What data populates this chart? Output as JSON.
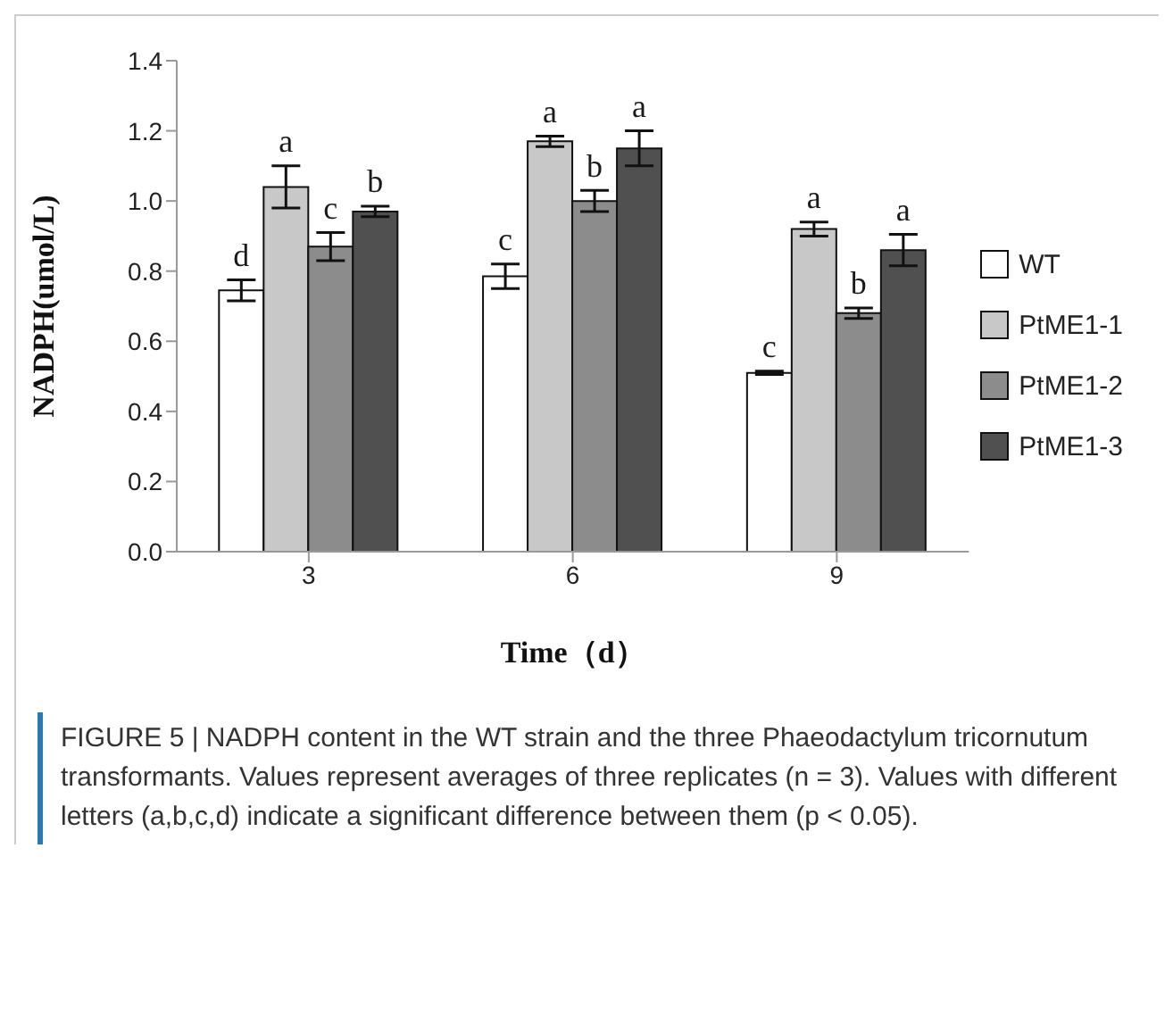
{
  "chart_data": {
    "type": "bar",
    "xlabel": "Time（d）",
    "ylabel": "NADPH(umol/L)",
    "categories": [
      "3",
      "6",
      "9"
    ],
    "series": [
      {
        "name": "WT",
        "color": "#ffffff",
        "values": [
          0.745,
          0.785,
          0.51
        ],
        "errors": [
          0.03,
          0.035,
          0.005
        ]
      },
      {
        "name": "PtME1-1",
        "color": "#c8c8c8",
        "values": [
          1.04,
          1.17,
          0.92
        ],
        "errors": [
          0.06,
          0.015,
          0.02
        ]
      },
      {
        "name": "PtME1-2",
        "color": "#8c8c8c",
        "values": [
          0.87,
          1.0,
          0.68
        ],
        "errors": [
          0.04,
          0.03,
          0.015
        ]
      },
      {
        "name": "PtME1-3",
        "color": "#505050",
        "values": [
          0.97,
          1.15,
          0.86
        ],
        "errors": [
          0.015,
          0.05,
          0.045
        ]
      }
    ],
    "ylim": [
      0,
      1.4
    ],
    "yticks": [
      {
        "value": 0,
        "label": "0.0"
      },
      0.2,
      0.4,
      0.6,
      0.8,
      {
        "value": 1,
        "label": "1.0"
      },
      1.2,
      1.4
    ],
    "legend": "right",
    "grid": false,
    "annotations": [
      {
        "text": "d",
        "x": "3",
        "y": 0.745
      },
      {
        "text": "a",
        "x": "3",
        "y": 1.04
      },
      {
        "text": "c",
        "x": "3",
        "y": 0.87
      },
      {
        "text": "b",
        "x": "3",
        "y": 0.97
      },
      {
        "text": "c",
        "x": "6",
        "y": 0.785
      },
      {
        "text": "a",
        "x": "6",
        "y": 1.17
      },
      {
        "text": "b",
        "x": "6",
        "y": 1.0
      },
      {
        "text": "a",
        "x": "6",
        "y": 1.15
      },
      {
        "text": "c",
        "x": "9",
        "y": 0.51
      },
      {
        "text": "a",
        "x": "9",
        "y": 0.92
      },
      {
        "text": "b",
        "x": "9",
        "y": 0.68
      },
      {
        "text": "a",
        "x": "9",
        "y": 0.86
      },
      "FIGURE 5 | NADPH content in the WT strain and the three Phaeodactylum tricornutum transformants. Values represent averages of three replicates (n = 3). Values with different letters (a,b,c,d) indicate a significant difference between them (p < 0.05)."
    ]
  }
}
